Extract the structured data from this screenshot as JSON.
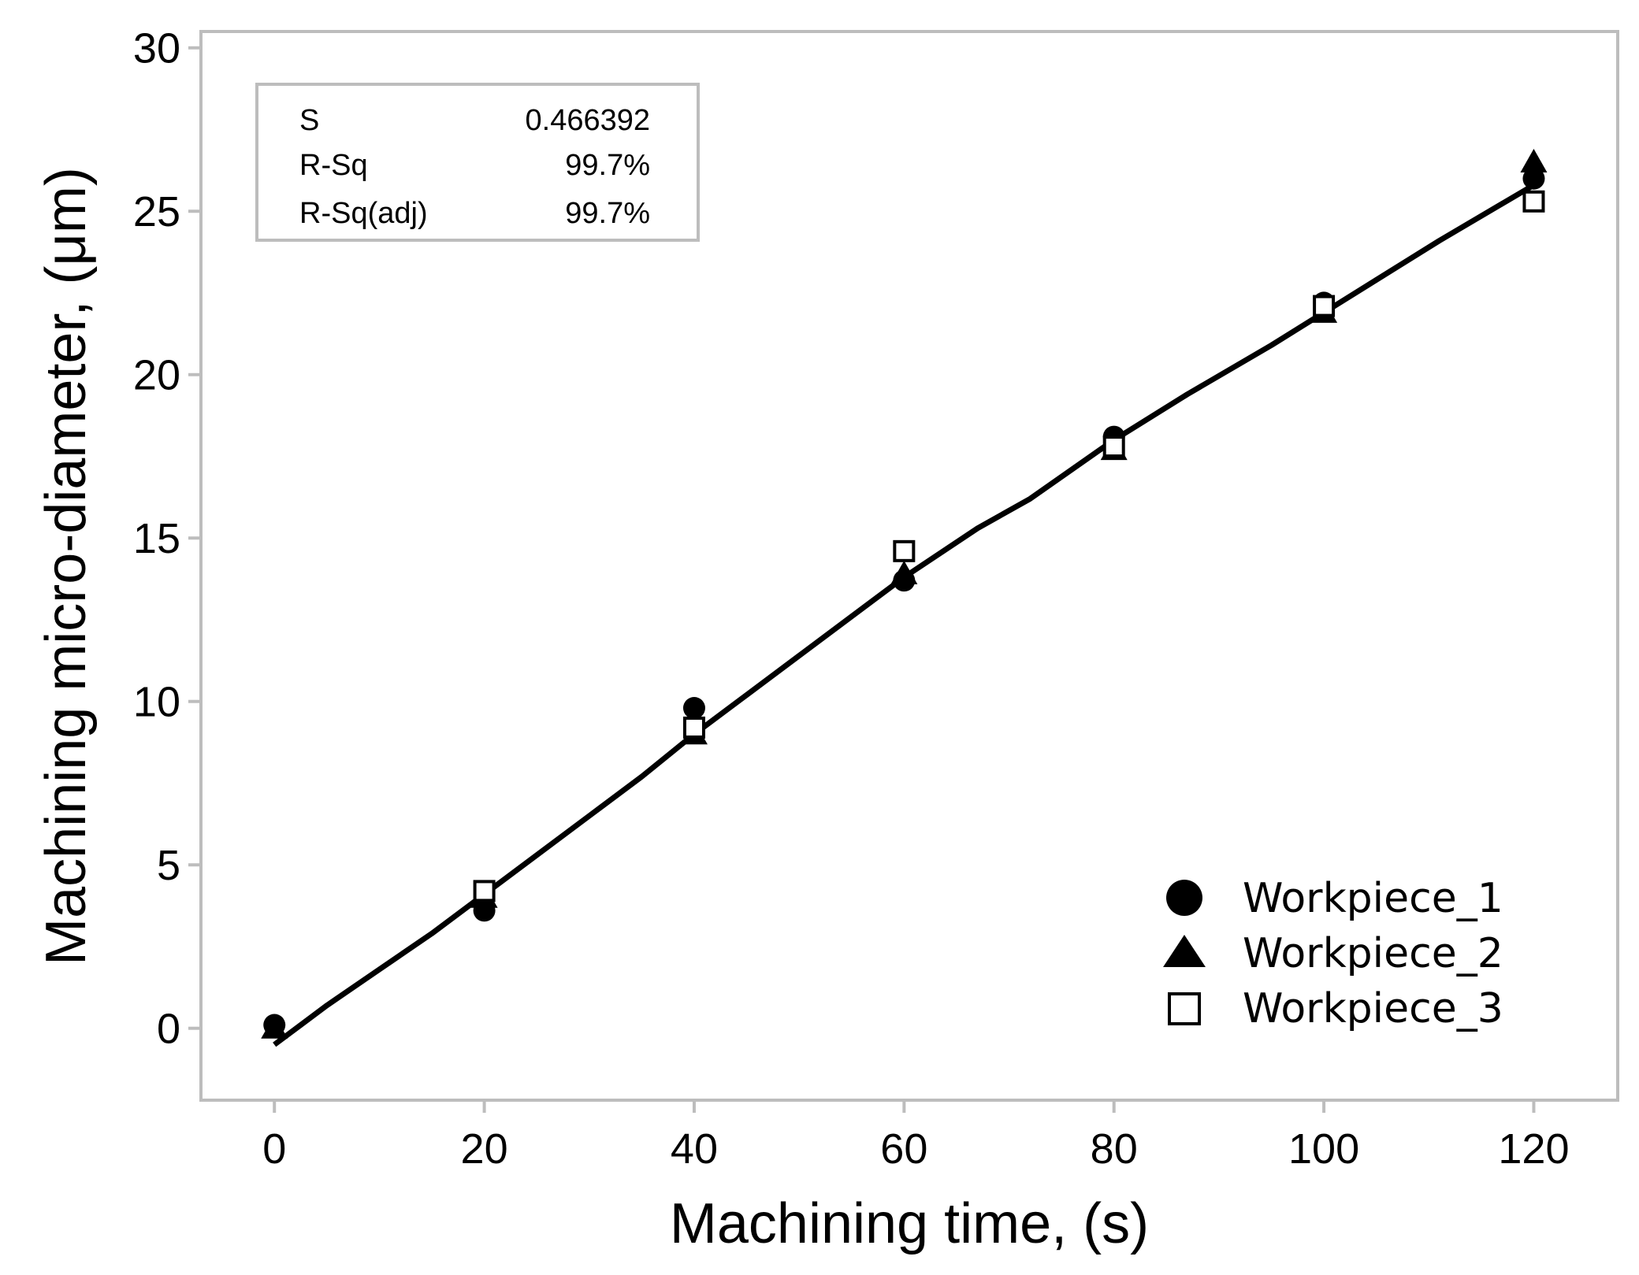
{
  "chart_data": {
    "type": "scatter",
    "xlabel": "Machining time, (s)",
    "ylabel": "Machining micro-diameter, (μm)",
    "xlim": [
      -7,
      128
    ],
    "ylim": [
      -2.2,
      30.5
    ],
    "xticks": [
      0,
      20,
      40,
      60,
      80,
      100,
      120
    ],
    "yticks": [
      0,
      5,
      10,
      15,
      20,
      25,
      30
    ],
    "grid": false,
    "legend_position": "bottom-right",
    "series": [
      {
        "name": "Workpiece_1",
        "marker": "circle-filled",
        "x": [
          0,
          20,
          40,
          60,
          80,
          100,
          120
        ],
        "y": [
          0.1,
          3.6,
          9.8,
          13.7,
          18.1,
          22.2,
          26.0
        ]
      },
      {
        "name": "Workpiece_2",
        "marker": "triangle-filled",
        "x": [
          0,
          20,
          40,
          60,
          80,
          100,
          120
        ],
        "y": [
          0.0,
          4.0,
          9.0,
          13.9,
          17.7,
          21.9,
          26.5
        ]
      },
      {
        "name": "Workpiece_3",
        "marker": "square-open",
        "x": [
          20,
          40,
          60,
          80,
          100,
          120
        ],
        "y": [
          4.2,
          9.2,
          14.6,
          17.8,
          22.1,
          25.3
        ]
      }
    ],
    "fit_line": {
      "x": [
        0,
        5,
        10,
        15,
        20,
        25,
        30,
        35,
        40,
        45,
        50,
        55,
        60,
        67,
        72,
        80,
        87,
        95,
        100,
        105,
        111,
        120
      ],
      "y": [
        -0.5,
        0.7,
        1.8,
        2.9,
        4.1,
        5.3,
        6.5,
        7.7,
        9.0,
        10.2,
        11.4,
        12.6,
        13.8,
        15.3,
        16.2,
        18.0,
        19.4,
        20.9,
        21.9,
        22.9,
        24.1,
        25.8
      ]
    },
    "stats": [
      {
        "label": "S",
        "value": "0.466392"
      },
      {
        "label": "R-Sq",
        "value": "99.7%"
      },
      {
        "label": "R-Sq(adj)",
        "value": "99.7%"
      }
    ]
  }
}
